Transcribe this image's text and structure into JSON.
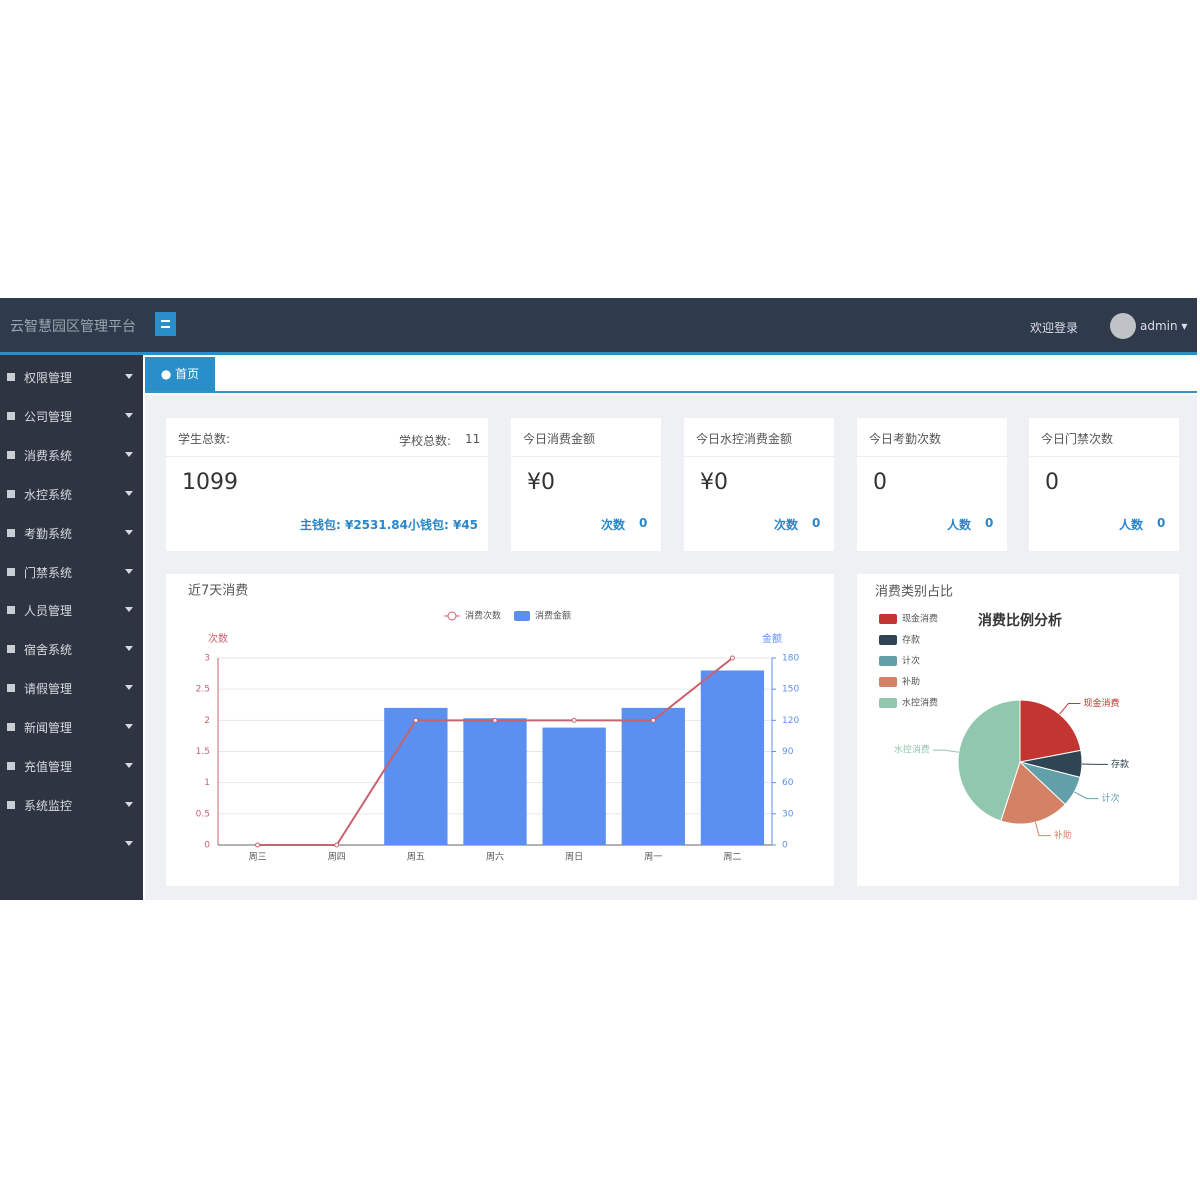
{
  "header": {
    "title": "云智慧园区管理平台",
    "welcome": "欢迎登录",
    "user": "admin"
  },
  "sidebar": {
    "items": [
      "权限管理",
      "公司管理",
      "消费系统",
      "水控系统",
      "考勤系统",
      "门禁系统",
      "人员管理",
      "宿舍系统",
      "请假管理",
      "新闻管理",
      "充值管理",
      "系统监控"
    ]
  },
  "tabs": [
    "首页"
  ],
  "summary": {
    "student_label": "学生总数:",
    "student_count": "1099",
    "school_label": "学校总数:",
    "school_count": "11",
    "main_wallet": "主钱包: ¥2531.84",
    "small_wallet": "小钱包: ¥45"
  },
  "stat_cards": [
    {
      "title": "今日消费金额",
      "value": "¥0",
      "footer_label": "次数",
      "footer_value": "0"
    },
    {
      "title": "今日水控消费金额",
      "value": "¥0",
      "footer_label": "次数",
      "footer_value": "0"
    },
    {
      "title": "今日考勤次数",
      "value": "0",
      "footer_label": "人数",
      "footer_value": "0"
    },
    {
      "title": "今日门禁次数",
      "value": "0",
      "footer_label": "人数",
      "footer_value": "0"
    }
  ],
  "chart_data": [
    {
      "type": "bar",
      "title": "近7天消费",
      "categories": [
        "周三",
        "周四",
        "周五",
        "周六",
        "周日",
        "周一",
        "周二"
      ],
      "series": [
        {
          "name": "消费次数",
          "type": "line",
          "color": "#c9626f",
          "values": [
            0,
            0,
            2,
            2,
            2,
            2,
            3
          ]
        },
        {
          "name": "消费金额",
          "type": "bar",
          "axis": "y2",
          "color": "#5b8ff0",
          "values": [
            0,
            0,
            132,
            122,
            113,
            132,
            168
          ]
        }
      ],
      "ylabel": "次数",
      "y2label": "金额",
      "ylim": [
        0,
        3
      ],
      "yticks": [
        0,
        0.5,
        1,
        1.5,
        2,
        2.5,
        3
      ],
      "y2lim": [
        0,
        180
      ],
      "y2ticks": [
        0,
        30,
        60,
        90,
        120,
        150,
        180
      ],
      "grid": true
    },
    {
      "type": "pie",
      "title": "消费类别占比",
      "subtitle": "消费比例分析",
      "categories": [
        "现金消费",
        "存款",
        "计次",
        "补助",
        "水控消费"
      ],
      "values": [
        22,
        7,
        8,
        18,
        45
      ],
      "colors": [
        "#c23531",
        "#2f4554",
        "#61a0a8",
        "#d48265",
        "#91c7ae"
      ]
    }
  ]
}
